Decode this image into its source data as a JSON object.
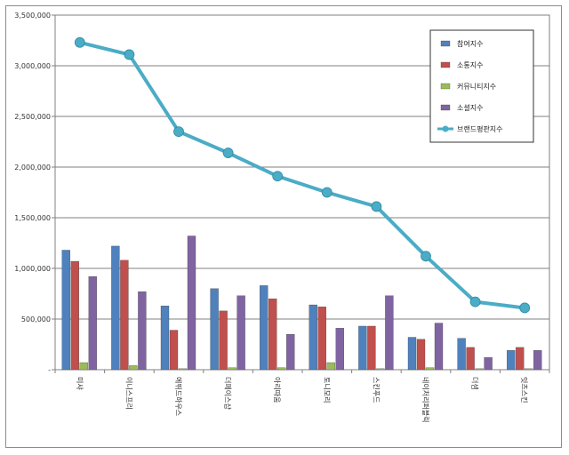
{
  "chart_data": {
    "type": "bar",
    "title": "",
    "xlabel": "",
    "ylabel": "",
    "ylim": [
      0,
      3500000
    ],
    "y_ticks": [
      "-",
      "500,000",
      "1,000,000",
      "1,500,000",
      "2,000,000",
      "2,500,000",
      "3,000,000",
      "3,500,000"
    ],
    "grid": true,
    "legend_position": "top-right",
    "categories": [
      "미샤",
      "이니스프리",
      "에뛰드하우스",
      "더페이스샵",
      "아리따움",
      "토니모리",
      "스킨푸드",
      "네이처리퍼블릭",
      "더샘",
      "잇츠스킨"
    ],
    "series": [
      {
        "name": "참여지수",
        "kind": "bar",
        "color": "#4F81BD",
        "values": [
          1180000,
          1220000,
          630000,
          800000,
          830000,
          640000,
          430000,
          320000,
          310000,
          190000
        ]
      },
      {
        "name": "소통지수",
        "kind": "bar",
        "color": "#C0504D",
        "values": [
          1070000,
          1080000,
          390000,
          580000,
          700000,
          620000,
          430000,
          300000,
          220000,
          220000
        ]
      },
      {
        "name": "커뮤니티지수",
        "kind": "bar",
        "color": "#9BBB59",
        "values": [
          70000,
          40000,
          10000,
          20000,
          20000,
          70000,
          10000,
          20000,
          10000,
          10000
        ]
      },
      {
        "name": "소셜지수",
        "kind": "bar",
        "color": "#8064A2",
        "values": [
          920000,
          770000,
          1320000,
          730000,
          350000,
          410000,
          730000,
          460000,
          120000,
          190000
        ]
      },
      {
        "name": "브랜드평판지수",
        "kind": "line",
        "color": "#4BACC6",
        "values": [
          3230000,
          3110000,
          2350000,
          2140000,
          1910000,
          1750000,
          1610000,
          1120000,
          670000,
          610000
        ]
      }
    ]
  }
}
